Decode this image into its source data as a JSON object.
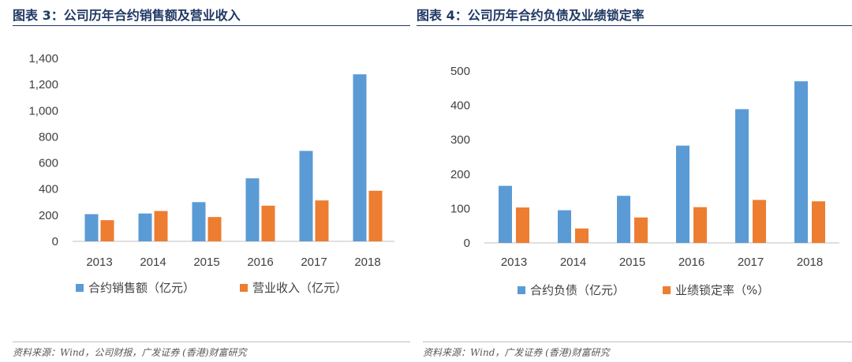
{
  "figures": [
    {
      "title": "图表 3：公司历年合约销售额及营业收入",
      "source": "资料来源：Wind，公司财报，广发证券 (香港)财富研究"
    },
    {
      "title": "图表 4：公司历年合约负债及业绩锁定率",
      "source": "资料来源：Wind，广发证券 (香港)财富研究"
    }
  ],
  "chart_data": [
    {
      "type": "bar",
      "categories": [
        "2013",
        "2014",
        "2015",
        "2016",
        "2017",
        "2018"
      ],
      "series": [
        {
          "name": "合约销售额（亿元）",
          "values": [
            208,
            213,
            300,
            482,
            692,
            1278
          ],
          "color": "#5b9bd5"
        },
        {
          "name": "营业收入（亿元）",
          "values": [
            162,
            232,
            186,
            273,
            313,
            387
          ],
          "color": "#ed7d31"
        }
      ],
      "ylim": [
        0,
        1400
      ],
      "yticks": [
        0,
        200,
        400,
        600,
        800,
        1000,
        1200,
        1400
      ],
      "ytick_labels": [
        "0",
        "200",
        "400",
        "600",
        "800",
        "1,000",
        "1,200",
        "1,400"
      ],
      "grid": false,
      "legend": "bottom"
    },
    {
      "type": "bar",
      "categories": [
        "2013",
        "2014",
        "2015",
        "2016",
        "2017",
        "2018"
      ],
      "series": [
        {
          "name": "合约负债（亿元）",
          "values": [
            166,
            95,
            137,
            283,
            389,
            470
          ],
          "color": "#5b9bd5"
        },
        {
          "name": "业绩锁定率（%）",
          "values": [
            103,
            42,
            74,
            104,
            125,
            121
          ],
          "color": "#ed7d31"
        }
      ],
      "ylim": [
        0,
        500
      ],
      "yticks": [
        0,
        100,
        200,
        300,
        400,
        500
      ],
      "ytick_labels": [
        "0",
        "100",
        "200",
        "300",
        "400",
        "500"
      ],
      "grid": false,
      "legend": "bottom"
    }
  ]
}
